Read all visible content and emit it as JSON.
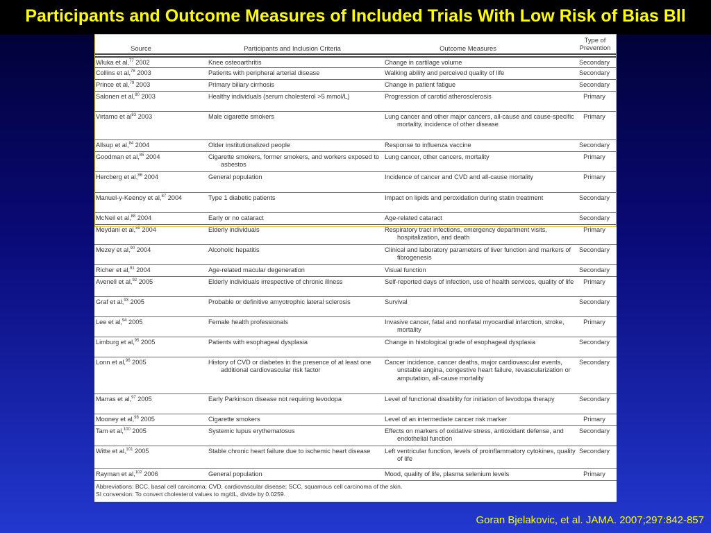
{
  "slide": {
    "title": "Participants and Outcome Measures of Included Trials With Low Risk of Bias Bll",
    "citation": "Goran Bjelakovic, et al. JAMA. 2007;297:842-857"
  },
  "table": {
    "headers": {
      "source": "Source",
      "participants": "Participants and Inclusion Criteria",
      "outcome": "Outcome Measures",
      "prevention": "Type of Prevention"
    },
    "rows": [
      {
        "source": "Wluka et al,",
        "ref": "77",
        "year": " 2002",
        "participants": "Knee osteoarthritis",
        "outcome": "Change in cartilage volume",
        "prevention": "Secondary"
      },
      {
        "source": "Collins et al,",
        "ref": "78",
        "year": " 2003",
        "participants": "Patients with peripheral arterial disease",
        "outcome": "Walking ability and perceived quality of life",
        "prevention": "Secondary"
      },
      {
        "source": "Prince et al,",
        "ref": "79",
        "year": " 2003",
        "participants": "Primary biliary cirrhosis",
        "outcome": "Change in patient fatigue",
        "prevention": "Secondary"
      },
      {
        "source": "Salonen et al,",
        "ref": "80",
        "year": " 2003",
        "participants": "Healthy individuals (serum cholesterol >5 mmol/L)",
        "outcome": "Progression of carotid atherosclerosis",
        "prevention": "Primary"
      },
      {
        "source": "Virtamo et al",
        "ref": "83",
        "year": " 2003",
        "participants": "Male cigarette smokers",
        "outcome": "Lung cancer and other major cancers, all-cause and cause-specific mortality, incidence of other disease",
        "prevention": "Primary"
      },
      {
        "source": "Allsup et al,",
        "ref": "84",
        "year": " 2004",
        "participants": "Older institutionalized people",
        "outcome": "Response to influenza vaccine",
        "prevention": "Secondary"
      },
      {
        "source": "Goodman et al,",
        "ref": "85",
        "year": " 2004",
        "participants": "Cigarette smokers, former smokers, and workers exposed to asbestos",
        "outcome": "Lung cancer, other cancers, mortality",
        "prevention": "Primary"
      },
      {
        "source": "Hercberg et al,",
        "ref": "86",
        "year": " 2004",
        "participants": "General population",
        "outcome": "Incidence of cancer and CVD and all-cause mortality",
        "prevention": "Primary"
      },
      {
        "source": "Manuel-y-Keenoy et al,",
        "ref": "87",
        "year": " 2004",
        "participants": "Type 1 diabetic patients",
        "outcome": "Impact on lipids and peroxidation during statin treatment",
        "prevention": "Secondary"
      },
      {
        "source": "McNeil et al,",
        "ref": "88",
        "year": " 2004",
        "participants": "Early or no cataract",
        "outcome": "Age-related cataract",
        "prevention": "Secondary"
      },
      {
        "source": "Meydani et al,",
        "ref": "89",
        "year": " 2004",
        "participants": "Elderly individuals",
        "outcome": "Respiratory tract infections, emergency department visits, hospitalization, and death",
        "prevention": "Primary"
      },
      {
        "source": "Mezey et al,",
        "ref": "90",
        "year": " 2004",
        "participants": "Alcoholic hepatitis",
        "outcome": "Clinical and laboratory parameters of liver function and markers of fibrogenesis",
        "prevention": "Secondary"
      },
      {
        "source": "Richer et al,",
        "ref": "91",
        "year": " 2004",
        "participants": "Age-related macular degeneration",
        "outcome": "Visual function",
        "prevention": "Secondary"
      },
      {
        "source": "Avenell et al,",
        "ref": "92",
        "year": " 2005",
        "participants": "Elderly individuals irrespective of chronic illness",
        "outcome": "Self-reported days of infection, use of health services, quality of life",
        "prevention": "Primary"
      },
      {
        "source": "Graf et al,",
        "ref": "93",
        "year": " 2005",
        "participants": "Probable or definitive amyotrophic lateral sclerosis",
        "outcome": "Survival",
        "prevention": "Secondary"
      },
      {
        "source": "Lee et al,",
        "ref": "94",
        "year": " 2005",
        "participants": "Female health professionals",
        "outcome": "Invasive cancer, fatal and nonfatal myocardial infarction, stroke, mortality",
        "prevention": "Primary"
      },
      {
        "source": "Limburg et al,",
        "ref": "95",
        "year": " 2005",
        "participants": "Patients with esophageal dysplasia",
        "outcome": "Change in histological grade of esophageal dysplasia",
        "prevention": "Secondary"
      },
      {
        "source": "Lonn et al,",
        "ref": "96",
        "year": " 2005",
        "participants": "History of CVD or diabetes in the presence of at least one additional cardiovascular risk factor",
        "outcome": "Cancer incidence, cancer deaths, major cardiovascular events, unstable angina, congestive heart failure, revascularization or amputation, all-cause mortality",
        "prevention": "Secondary"
      },
      {
        "source": "Marras et al,",
        "ref": "97",
        "year": " 2005",
        "participants": "Early Parkinson disease not requiring levodopa",
        "outcome": "Level of functional disability for initiation of levodopa therapy",
        "prevention": "Secondary"
      },
      {
        "source": "Mooney et al,",
        "ref": "98",
        "year": " 2005",
        "participants": "Cigarette smokers",
        "outcome": "Level of an intermediate cancer risk marker",
        "prevention": "Primary"
      },
      {
        "source": "Tam et al,",
        "ref": "100",
        "year": " 2005",
        "participants": "Systemic lupus erythematosus",
        "outcome": "Effects on markers of oxidative stress, antioxidant defense, and endothelial function",
        "prevention": "Secondary"
      },
      {
        "source": "Witte et al,",
        "ref": "101",
        "year": " 2005",
        "participants": "Stable chronic heart failure due to ischemic heart disease",
        "outcome": "Left ventricular function, levels of proinflammatory cytokines, quality of life",
        "prevention": "Secondary"
      },
      {
        "source": "Rayman et al,",
        "ref": "102",
        "year": " 2006",
        "participants": "General population",
        "outcome": "Mood, quality of life, plasma selenium levels",
        "prevention": "Primary"
      }
    ],
    "footnote_abbreviations": "Abbreviations: BCC, basal cell carcinoma; CVD, cardiovascular disease; SCC, squamous cell carcinoma of the skin.",
    "footnote_si": "SI conversion: To convert cholesterol values to mg/dL, divide by 0.0259."
  },
  "colors": {
    "title": "#ffff00",
    "citation": "#ffff00",
    "background_top": "#00002e",
    "background_bottom": "#2238cf",
    "highlight_border": "#e0c93a"
  }
}
